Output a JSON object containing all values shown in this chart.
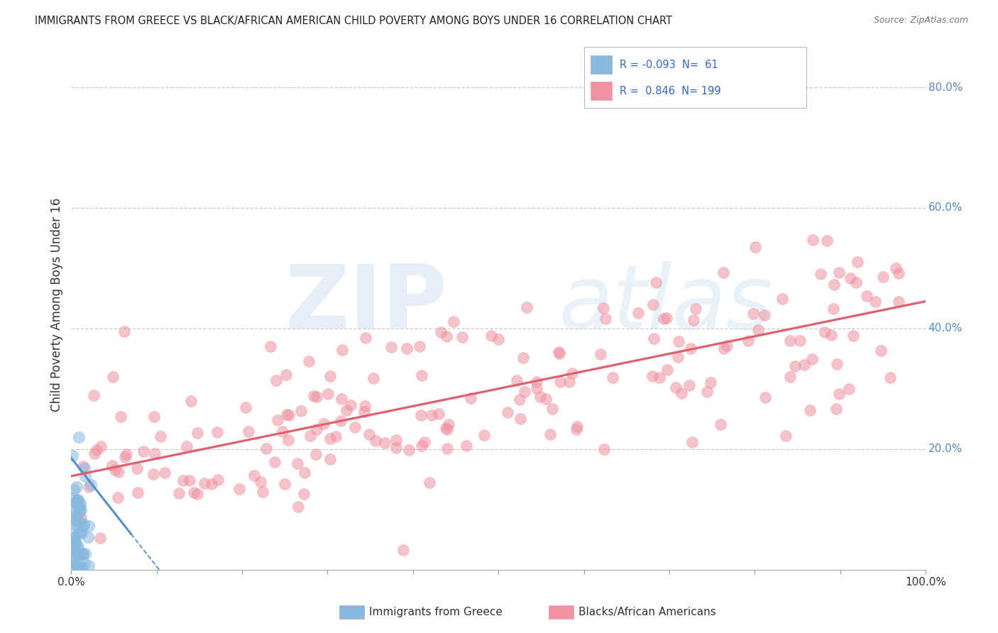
{
  "title": "IMMIGRANTS FROM GREECE VS BLACK/AFRICAN AMERICAN CHILD POVERTY AMONG BOYS UNDER 16 CORRELATION CHART",
  "source": "Source: ZipAtlas.com",
  "ylabel": "Child Poverty Among Boys Under 16",
  "legend_entries": [
    {
      "label": "Immigrants from Greece",
      "color": "#a8c4e0",
      "r": -0.093,
      "n": 61
    },
    {
      "label": "Blacks/African Americans",
      "color": "#f5b8c8",
      "r": 0.846,
      "n": 199
    }
  ],
  "watermark_zip": "ZIP",
  "watermark_atlas": "atlas",
  "background_color": "#ffffff",
  "grid_color": "#cccccc",
  "blue_scatter_color": "#88b8de",
  "pink_scatter_color": "#f090a0",
  "blue_line_color": "#5590c8",
  "pink_line_color": "#e06070",
  "xlim": [
    0.0,
    1.0
  ],
  "ylim": [
    0.0,
    0.88
  ],
  "ytick_vals": [
    0.2,
    0.4,
    0.6,
    0.8
  ],
  "seed_blue": 42,
  "seed_pink": 77,
  "blue_slope": -1.8,
  "blue_intercept": 0.185,
  "pink_slope": 0.29,
  "pink_intercept": 0.155
}
